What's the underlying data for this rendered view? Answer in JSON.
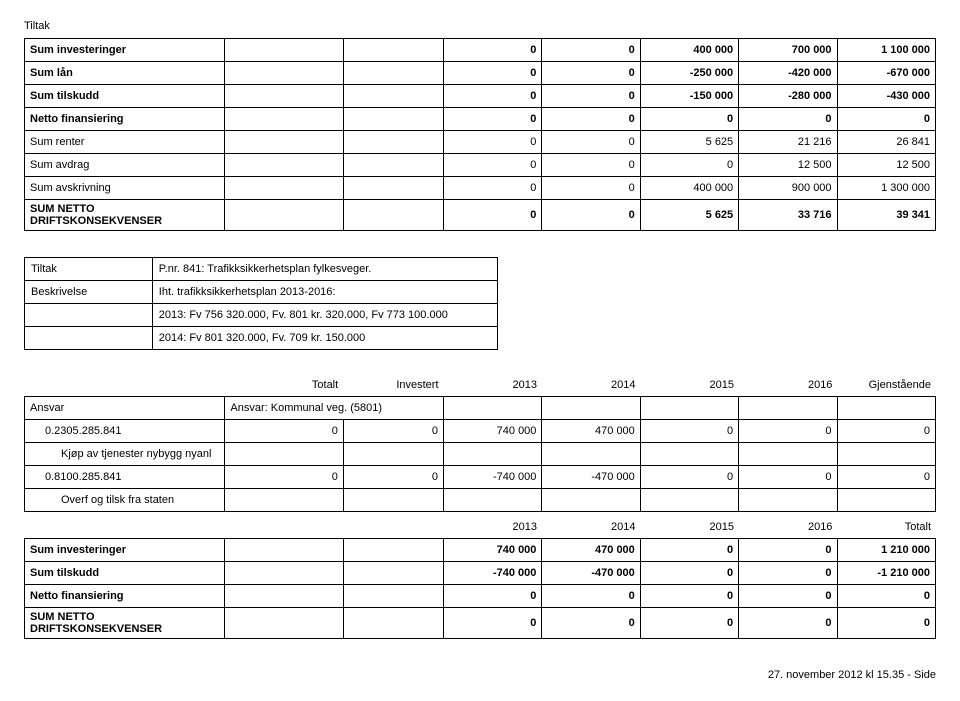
{
  "topLabel": "Tiltak",
  "table1": {
    "rows": [
      {
        "label": "Sum investeringer",
        "bold": true,
        "a": "",
        "b": "",
        "c": "0",
        "d": "0",
        "e": "400 000",
        "f": "700 000",
        "g": "1 100 000"
      },
      {
        "label": "Sum lån",
        "bold": true,
        "a": "",
        "b": "",
        "c": "0",
        "d": "0",
        "e": "-250 000",
        "f": "-420 000",
        "g": "-670 000"
      },
      {
        "label": "Sum tilskudd",
        "bold": true,
        "a": "",
        "b": "",
        "c": "0",
        "d": "0",
        "e": "-150 000",
        "f": "-280 000",
        "g": "-430 000"
      },
      {
        "label": "Netto finansiering",
        "bold": true,
        "a": "",
        "b": "",
        "c": "0",
        "d": "0",
        "e": "0",
        "f": "0",
        "g": "0"
      },
      {
        "label": "Sum renter",
        "bold": false,
        "a": "",
        "b": "",
        "c": "0",
        "d": "0",
        "e": "5 625",
        "f": "21 216",
        "g": "26 841"
      },
      {
        "label": "Sum avdrag",
        "bold": false,
        "a": "",
        "b": "",
        "c": "0",
        "d": "0",
        "e": "0",
        "f": "12 500",
        "g": "12 500"
      },
      {
        "label": "Sum avskrivning",
        "bold": false,
        "a": "",
        "b": "",
        "c": "0",
        "d": "0",
        "e": "400 000",
        "f": "900 000",
        "g": "1 300 000"
      },
      {
        "label": "SUM NETTO DRIFTSKONSEKVENSER",
        "bold": true,
        "a": "",
        "b": "",
        "c": "0",
        "d": "0",
        "e": "5 625",
        "f": "33 716",
        "g": "39 341"
      }
    ]
  },
  "desc": {
    "rows": [
      {
        "key": "Tiltak",
        "val": "P.nr. 841: Trafikksikkerhetsplan fylkesveger."
      },
      {
        "key": "Beskrivelse",
        "val": "Iht. trafikksikkerhetsplan 2013-2016:"
      },
      {
        "key": "",
        "val": "2013: Fv 756 320.000, Fv. 801 kr. 320.000, Fv 773 100.000"
      },
      {
        "key": "",
        "val": "2014: Fv 801 320.000, Fv. 709 kr. 150.000"
      }
    ]
  },
  "investHeader": {
    "cols": [
      "",
      "Totalt",
      "Investert",
      "2013",
      "2014",
      "2015",
      "2016",
      "Gjenstående"
    ]
  },
  "ansvar": {
    "label": "Ansvar",
    "groupLabel": "Ansvar: Kommunal veg. (5801)",
    "items": [
      {
        "code": "0.2305.285.841",
        "sub": "Kjøp av tjenester nybygg nyanl",
        "a": "0",
        "b": "0",
        "c": "740 000",
        "d": "470 000",
        "e": "0",
        "f": "0",
        "g": "0"
      },
      {
        "code": "0.8100.285.841",
        "sub": "Overf og tilsk fra staten",
        "a": "0",
        "b": "0",
        "c": "-740 000",
        "d": "-470 000",
        "e": "0",
        "f": "0",
        "g": "0"
      }
    ]
  },
  "table2header": {
    "cols": [
      "",
      "",
      "",
      "2013",
      "2014",
      "2015",
      "2016",
      "Totalt"
    ]
  },
  "table2": {
    "rows": [
      {
        "label": "Sum investeringer",
        "bold": true,
        "a": "",
        "b": "",
        "c": "740 000",
        "d": "470 000",
        "e": "0",
        "f": "0",
        "g": "1 210 000"
      },
      {
        "label": "Sum tilskudd",
        "bold": true,
        "a": "",
        "b": "",
        "c": "-740 000",
        "d": "-470 000",
        "e": "0",
        "f": "0",
        "g": "-1 210 000"
      },
      {
        "label": "Netto finansiering",
        "bold": true,
        "a": "",
        "b": "",
        "c": "0",
        "d": "0",
        "e": "0",
        "f": "0",
        "g": "0"
      },
      {
        "label": "SUM NETTO DRIFTSKONSEKVENSER",
        "bold": true,
        "a": "",
        "b": "",
        "c": "0",
        "d": "0",
        "e": "0",
        "f": "0",
        "g": "0"
      }
    ]
  },
  "footer": "27. november 2012 kl 15.35 - Side"
}
